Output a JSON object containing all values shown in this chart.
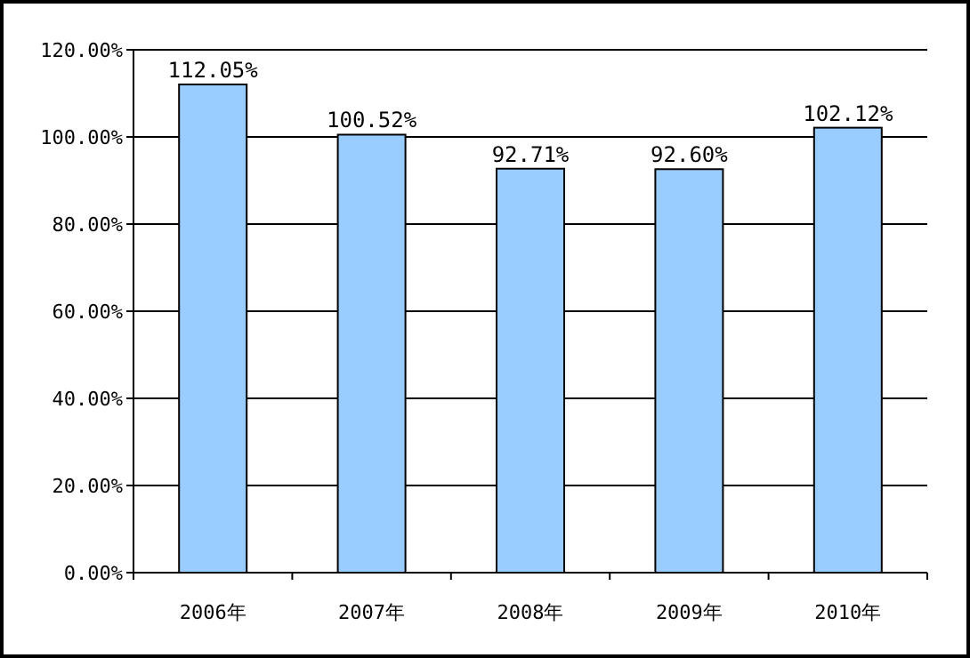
{
  "chart_data": {
    "type": "bar",
    "categories": [
      "2006年",
      "2007年",
      "2008年",
      "2009年",
      "2010年"
    ],
    "values": [
      112.05,
      100.52,
      92.71,
      92.6,
      102.12
    ],
    "value_labels": [
      "112.05%",
      "100.52%",
      "92.71%",
      "92.60%",
      "102.12%"
    ],
    "color": "#99ccff",
    "ylim": [
      0,
      120
    ],
    "yticks": [
      {
        "value": 0,
        "label": "0.00%"
      },
      {
        "value": 20,
        "label": "20.00%"
      },
      {
        "value": 40,
        "label": "40.00%"
      },
      {
        "value": 60,
        "label": "60.00%"
      },
      {
        "value": 80,
        "label": "80.00%"
      },
      {
        "value": 100,
        "label": "100.00%"
      },
      {
        "value": 120,
        "label": "120.00%"
      }
    ],
    "grid": "y"
  }
}
